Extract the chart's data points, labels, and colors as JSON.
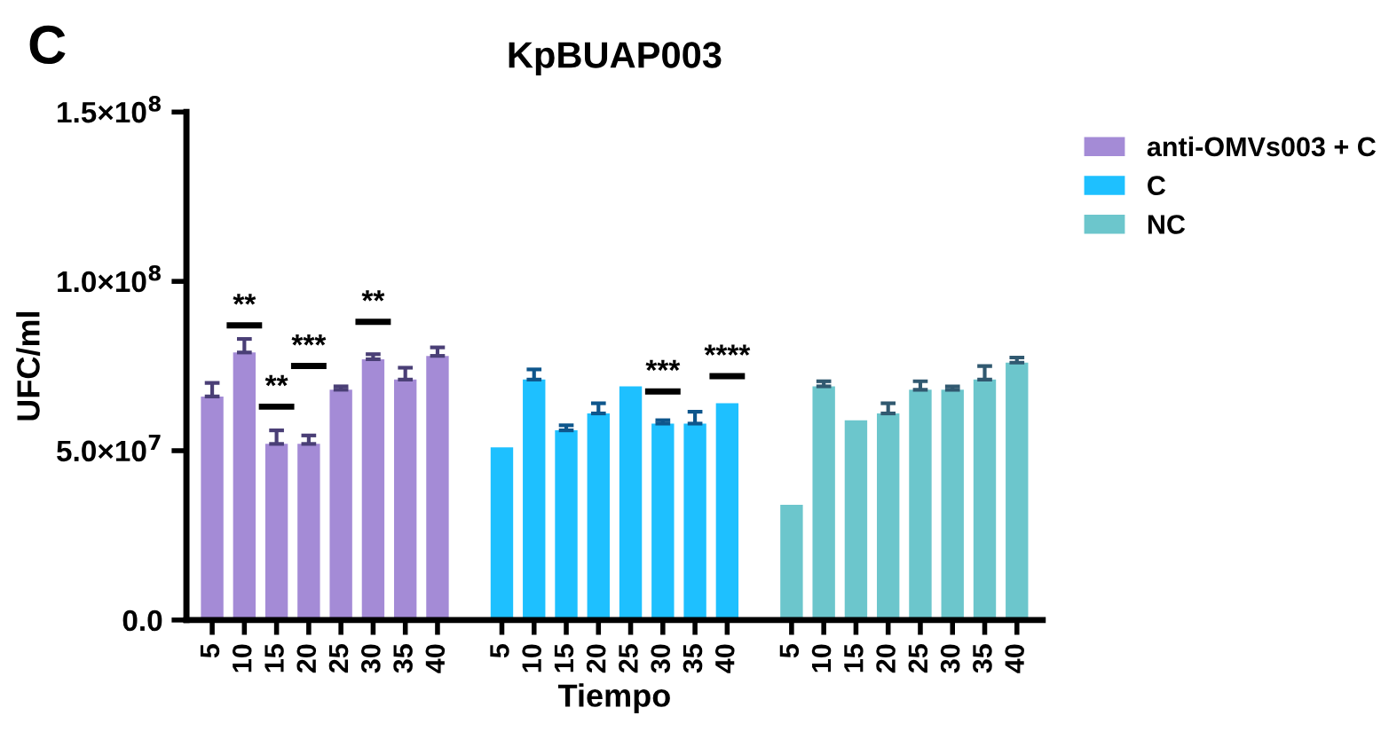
{
  "chart_data": {
    "type": "bar",
    "title": "KpBUAP003",
    "xlabel": "Tiempo",
    "ylabel": "UFC/ml",
    "categories": [
      "5",
      "10",
      "15",
      "20",
      "25",
      "30",
      "35",
      "40",
      null,
      "5",
      "10",
      "15",
      "20",
      "25",
      "30",
      "35",
      "40",
      null,
      "5",
      "10",
      "15",
      "20",
      "25",
      "30",
      "35",
      "40"
    ],
    "series": [
      {
        "name": "anti-OMVs003 + C",
        "color": "#a48bd6",
        "values": [
          66000000.0,
          79000000.0,
          52000000.0,
          52000000.0,
          68000000.0,
          77000000.0,
          71000000.0,
          78000000.0,
          null,
          null,
          null,
          null,
          null,
          null,
          null,
          null,
          null,
          null,
          null,
          null,
          null,
          null,
          null,
          null,
          null,
          null
        ],
        "errors": [
          4000000.0,
          4000000.0,
          4000000.0,
          2500000.0,
          1000000.0,
          1500000.0,
          3500000.0,
          2500000.0,
          null,
          null,
          null,
          null,
          null,
          null,
          null,
          null,
          null,
          null,
          null,
          null,
          null,
          null,
          null,
          null,
          null,
          null
        ]
      },
      {
        "name": "C",
        "color": "#1ec0ff",
        "values": [
          null,
          null,
          null,
          null,
          null,
          null,
          null,
          null,
          null,
          51000000.0,
          71000000.0,
          56000000.0,
          61000000.0,
          69000000.0,
          58000000.0,
          58000000.0,
          64000000.0,
          null,
          null,
          null,
          null,
          null,
          null,
          null,
          null,
          null
        ],
        "errors": [
          null,
          null,
          null,
          null,
          null,
          null,
          null,
          null,
          null,
          null,
          3000000.0,
          1500000.0,
          3000000.0,
          null,
          1000000.0,
          3500000.0,
          null,
          null,
          null,
          null,
          null,
          null,
          null,
          null,
          null,
          null
        ]
      },
      {
        "name": "NC",
        "color": "#6cc6cc",
        "values": [
          null,
          null,
          null,
          null,
          null,
          null,
          null,
          null,
          null,
          null,
          null,
          null,
          null,
          null,
          null,
          null,
          null,
          null,
          34000000.0,
          69000000.0,
          59000000.0,
          61000000.0,
          68000000.0,
          68000000.0,
          71000000.0,
          76000000.0
        ],
        "errors": [
          null,
          null,
          null,
          null,
          null,
          null,
          null,
          null,
          null,
          null,
          null,
          null,
          null,
          null,
          null,
          null,
          null,
          null,
          null,
          1500000.0,
          null,
          3000000.0,
          2500000.0,
          1000000.0,
          4000000.0,
          1500000.0
        ]
      }
    ],
    "ylim": [
      0,
      150000000.0
    ],
    "yticks": [
      {
        "value": 0,
        "label": "0.0"
      },
      {
        "value": 50000000.0,
        "label": "5.0×10$^{7}$"
      },
      {
        "value": 100000000.0,
        "label": "1.0×10$^{8}$"
      },
      {
        "value": 150000000.0,
        "label": "1.5×10$^{8}$"
      }
    ],
    "legend": "top right",
    "grid": false,
    "annotations": [
      "C",
      "**",
      "**",
      "***",
      "**",
      "***",
      "****"
    ]
  }
}
